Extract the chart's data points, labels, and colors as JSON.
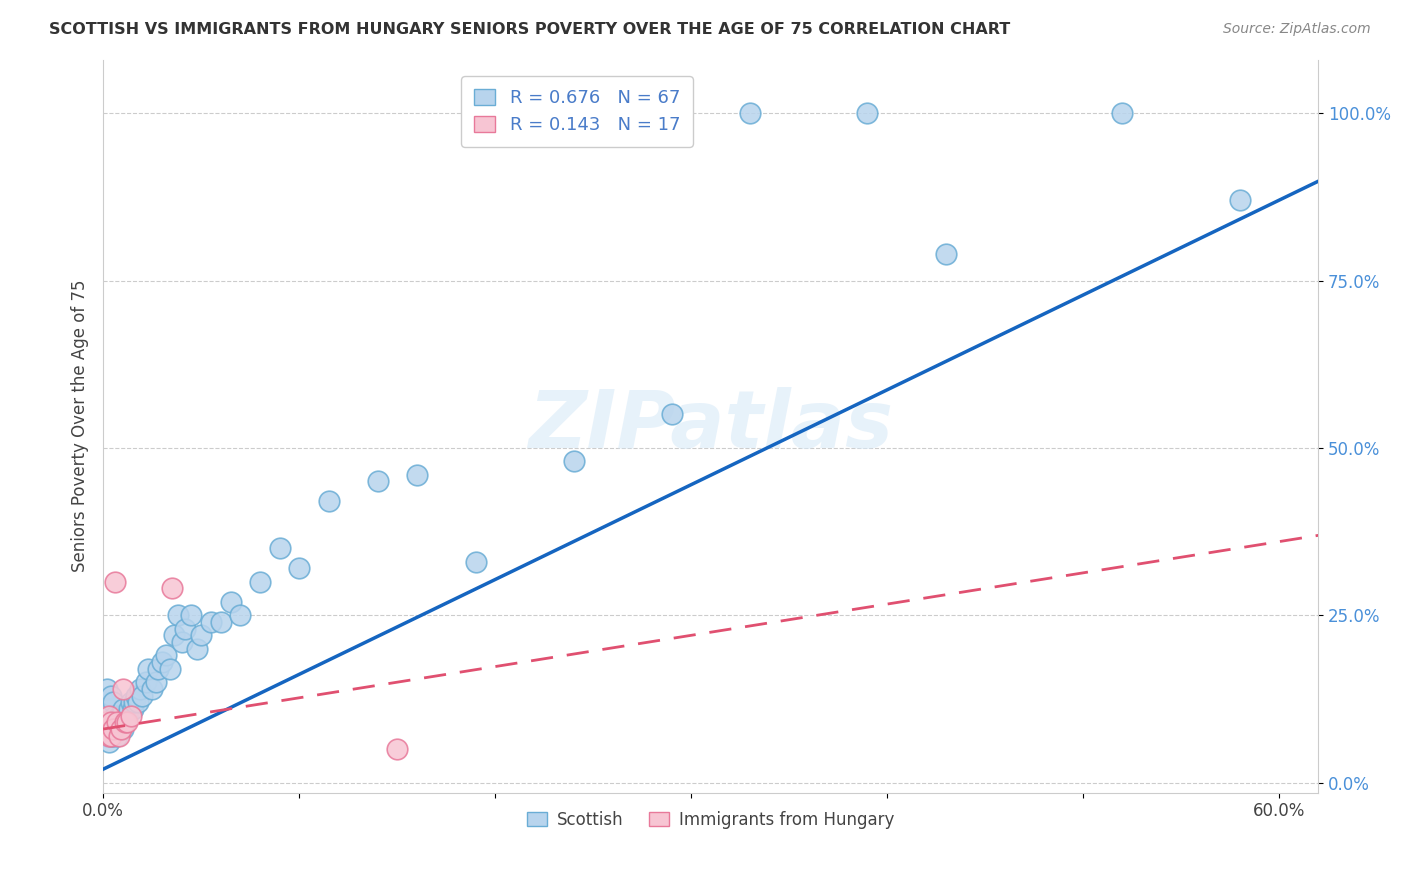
{
  "title": "SCOTTISH VS IMMIGRANTS FROM HUNGARY SENIORS POVERTY OVER THE AGE OF 75 CORRELATION CHART",
  "source": "Source: ZipAtlas.com",
  "ylabel": "Seniors Poverty Over the Age of 75",
  "xlim": [
    0.0,
    0.62
  ],
  "ylim": [
    -0.015,
    1.08
  ],
  "yticks": [
    0.0,
    0.25,
    0.5,
    0.75,
    1.0
  ],
  "ytick_labels": [
    "0.0%",
    "25.0%",
    "50.0%",
    "75.0%",
    "100.0%"
  ],
  "xticks": [
    0.0,
    0.1,
    0.2,
    0.3,
    0.4,
    0.5,
    0.6
  ],
  "xtick_labels": [
    "0.0%",
    "",
    "",
    "",
    "",
    "",
    "60.0%"
  ],
  "scottish_color": "#b8d4ed",
  "scottish_edge_color": "#6aadd5",
  "hungary_color": "#f7c5d3",
  "hungary_edge_color": "#e8799a",
  "regression_scottish_color": "#1565c0",
  "regression_hungary_color": "#e05070",
  "R_scottish": "0.676",
  "N_scottish": "67",
  "R_hungary": "0.143",
  "N_hungary": "17",
  "legend_label_scottish": "R = 0.676   N = 67",
  "legend_label_hungary": "R = 0.143   N = 17",
  "watermark": "ZIPatlas",
  "scottish_x": [
    0.001,
    0.001,
    0.002,
    0.002,
    0.002,
    0.003,
    0.003,
    0.003,
    0.004,
    0.004,
    0.004,
    0.005,
    0.005,
    0.005,
    0.006,
    0.006,
    0.007,
    0.007,
    0.008,
    0.008,
    0.009,
    0.009,
    0.01,
    0.01,
    0.011,
    0.012,
    0.013,
    0.014,
    0.015,
    0.016,
    0.017,
    0.018,
    0.019,
    0.02,
    0.022,
    0.023,
    0.025,
    0.027,
    0.028,
    0.03,
    0.032,
    0.034,
    0.036,
    0.038,
    0.04,
    0.042,
    0.045,
    0.048,
    0.05,
    0.055,
    0.06,
    0.065,
    0.07,
    0.08,
    0.09,
    0.1,
    0.115,
    0.14,
    0.16,
    0.19,
    0.24,
    0.29,
    0.33,
    0.39,
    0.43,
    0.52,
    0.58
  ],
  "scottish_y": [
    0.08,
    0.12,
    0.07,
    0.1,
    0.14,
    0.06,
    0.09,
    0.11,
    0.07,
    0.09,
    0.13,
    0.07,
    0.09,
    0.12,
    0.08,
    0.1,
    0.07,
    0.09,
    0.08,
    0.1,
    0.08,
    0.1,
    0.08,
    0.11,
    0.09,
    0.1,
    0.11,
    0.12,
    0.11,
    0.12,
    0.13,
    0.12,
    0.14,
    0.13,
    0.15,
    0.17,
    0.14,
    0.15,
    0.17,
    0.18,
    0.19,
    0.17,
    0.22,
    0.25,
    0.21,
    0.23,
    0.25,
    0.2,
    0.22,
    0.24,
    0.24,
    0.27,
    0.25,
    0.3,
    0.35,
    0.32,
    0.42,
    0.45,
    0.46,
    0.33,
    0.48,
    0.55,
    1.0,
    1.0,
    0.79,
    1.0,
    0.87
  ],
  "hungary_x": [
    0.001,
    0.002,
    0.003,
    0.003,
    0.004,
    0.004,
    0.005,
    0.006,
    0.007,
    0.008,
    0.009,
    0.01,
    0.011,
    0.012,
    0.014,
    0.035,
    0.15
  ],
  "hungary_y": [
    0.09,
    0.08,
    0.1,
    0.07,
    0.09,
    0.07,
    0.08,
    0.3,
    0.09,
    0.07,
    0.08,
    0.14,
    0.09,
    0.09,
    0.1,
    0.29,
    0.05
  ]
}
